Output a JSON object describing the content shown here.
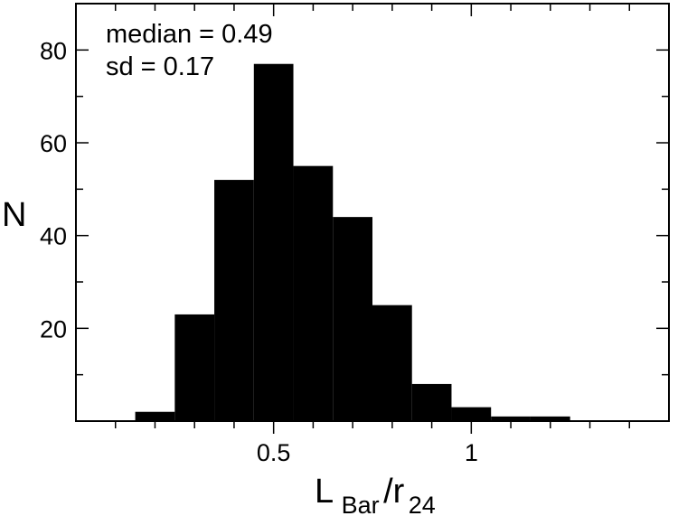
{
  "chart_data": {
    "type": "bar",
    "variant": "histogram",
    "bin_edges": [
      0.15,
      0.25,
      0.35,
      0.45,
      0.55,
      0.65,
      0.75,
      0.85,
      0.95,
      1.05,
      1.15,
      1.25
    ],
    "values": [
      2,
      23,
      52,
      77,
      55,
      44,
      25,
      8,
      3,
      1,
      1
    ],
    "xlim": [
      0.0,
      1.5
    ],
    "ylim": [
      0,
      90
    ],
    "x_ticks": [
      {
        "value": 0.5,
        "label": "0.5"
      },
      {
        "value": 1.0,
        "label": "1"
      }
    ],
    "y_ticks": [
      {
        "value": 20,
        "label": "20"
      },
      {
        "value": 40,
        "label": "40"
      },
      {
        "value": 60,
        "label": "60"
      },
      {
        "value": 80,
        "label": "80"
      }
    ],
    "x_minor_step": 0.1,
    "y_minor_step": 10,
    "ylabel": "N",
    "xlabel": {
      "main": "L",
      "sub1": "Bar",
      "slash": "/r",
      "sub2": "24"
    },
    "annotations": [
      "median = 0.49",
      "sd = 0.17"
    ],
    "grid": false,
    "bar_color": "#000000",
    "axis_color": "#000000"
  }
}
